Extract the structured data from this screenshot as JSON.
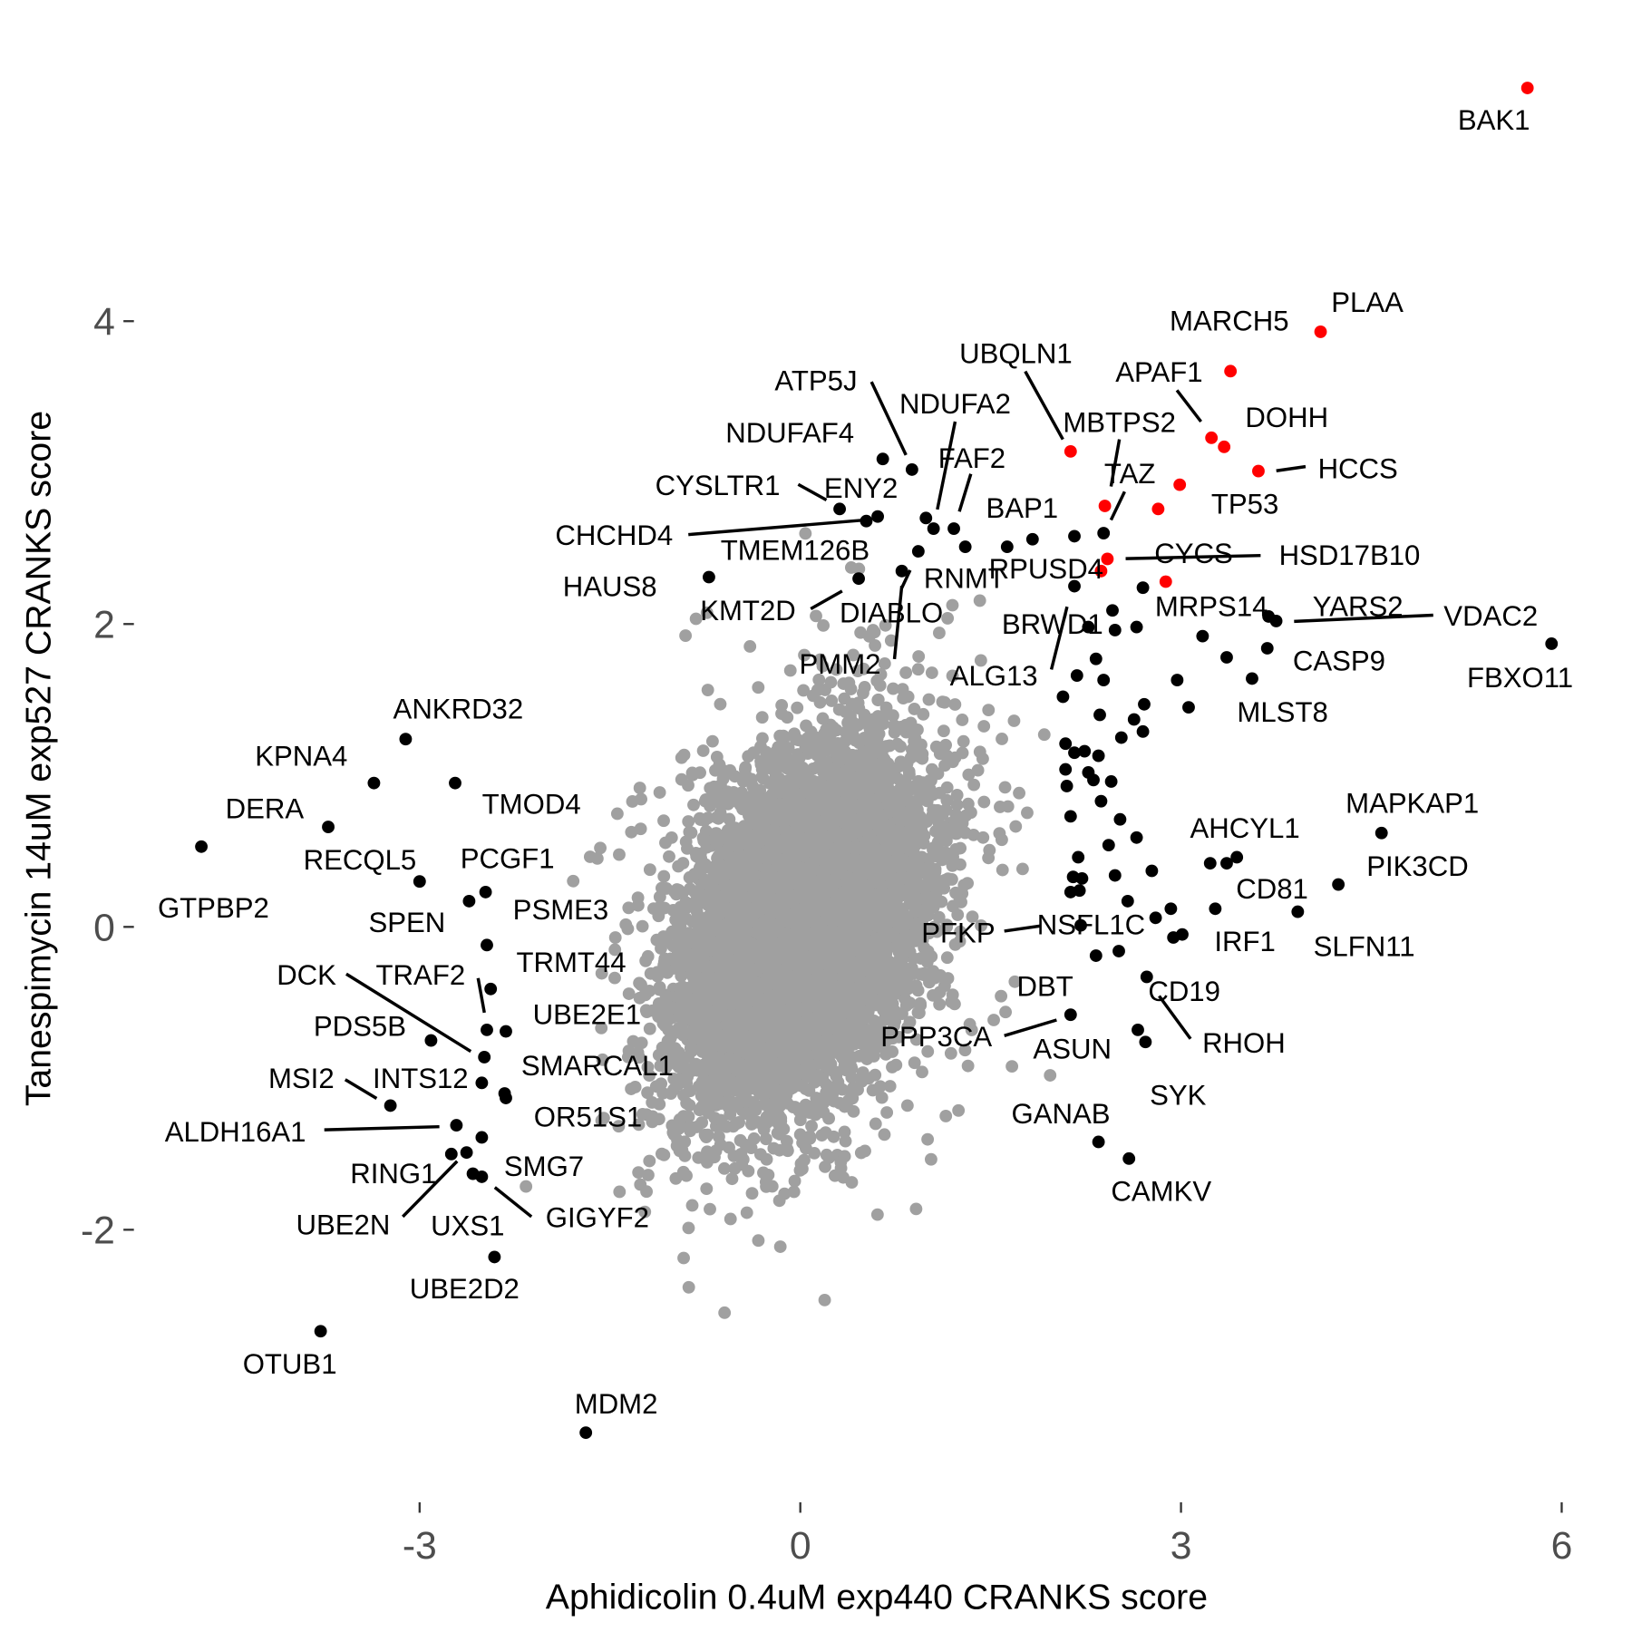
{
  "chart_data": {
    "type": "scatter",
    "xlabel": "Aphidicolin 0.4uM exp440 CRANKS score",
    "ylabel": "Tanespimycin 14uM exp527 CRANKS score",
    "xticks": [
      -3,
      0,
      3,
      6
    ],
    "yticks": [
      -2,
      0,
      2,
      4
    ],
    "grid": false,
    "legend": "none",
    "colors": {
      "background_points": "#a0a0a0",
      "highlight": "#ff0000",
      "significant": "#000000"
    },
    "red_points": [
      {
        "label": "BAK1",
        "x": 5.73,
        "y": 5.54
      },
      {
        "label": "PLAA",
        "x": 4.1,
        "y": 3.93
      },
      {
        "label": "MARCH5",
        "x": 3.39,
        "y": 3.67
      },
      {
        "label": "APAF1",
        "x": 3.24,
        "y": 3.23
      },
      {
        "label": "DOHH",
        "x": 3.34,
        "y": 3.17
      },
      {
        "label": "HCCS",
        "x": 3.61,
        "y": 3.01
      },
      {
        "label": "TP53",
        "x": 2.99,
        "y": 2.92
      },
      {
        "label": "TAZ",
        "x": 2.82,
        "y": 2.76
      },
      {
        "label": "MBTPS2",
        "x": 2.4,
        "y": 2.78
      },
      {
        "label": "UBQLN1",
        "x": 2.13,
        "y": 3.14
      },
      {
        "label": "CYCS",
        "x": 2.42,
        "y": 2.43
      },
      {
        "label": "HSD17B10",
        "x": 2.37,
        "y": 2.35
      },
      {
        "label": "MRPS14",
        "x": 2.88,
        "y": 2.28
      }
    ],
    "black_points": [
      {
        "label": "ATP5J",
        "x": 0.88,
        "y": 3.02
      },
      {
        "label": "NDUFAF4",
        "x": 0.65,
        "y": 3.09
      },
      {
        "label": "CYSLTR1",
        "x": 0.31,
        "y": 2.76
      },
      {
        "label": "ENY2",
        "x": 0.61,
        "y": 2.71
      },
      {
        "label": "CHCHD4",
        "x": 0.52,
        "y": 2.68
      },
      {
        "label": "NDUFA2",
        "x": 0.99,
        "y": 2.7
      },
      {
        "label": "FAF2",
        "x": 1.21,
        "y": 2.63
      },
      {
        "label": "TMEM126B",
        "x": 1.05,
        "y": 2.63
      },
      {
        "label": "RNMT",
        "x": 0.93,
        "y": 2.48
      },
      {
        "label": "PMM2",
        "x": 0.8,
        "y": 2.35
      },
      {
        "label": "DIABLO",
        "x": 1.3,
        "y": 2.51
      },
      {
        "label": "HAUS8",
        "x": -0.72,
        "y": 2.31
      },
      {
        "label": "KMT2D",
        "x": 0.46,
        "y": 2.3
      },
      {
        "label": "BAP1",
        "x": 1.83,
        "y": 2.56
      },
      {
        "label": "RPUSD4",
        "x": 2.16,
        "y": 2.58
      },
      {
        "label": "BRWD1",
        "x": 2.16,
        "y": 2.25
      },
      {
        "label": "ALG13",
        "x": 2.07,
        "y": 1.52
      },
      {
        "label": "YARS2",
        "x": 3.69,
        "y": 2.05
      },
      {
        "label": "VDAC2",
        "x": 3.75,
        "y": 2.02
      },
      {
        "label": "CASP9",
        "x": 3.68,
        "y": 1.84
      },
      {
        "label": "FBXO11",
        "x": 5.92,
        "y": 1.87
      },
      {
        "label": "MLST8",
        "x": 3.56,
        "y": 1.64
      },
      {
        "label": "MAPKAP1",
        "x": 4.58,
        "y": 0.62
      },
      {
        "label": "AHCYL1",
        "x": 3.44,
        "y": 0.46
      },
      {
        "label": "CD81",
        "x": 3.27,
        "y": 0.12
      },
      {
        "label": "PIK3CD",
        "x": 4.24,
        "y": 0.28
      },
      {
        "label": "SLFN11",
        "x": 3.92,
        "y": 0.1
      },
      {
        "label": "IRF1",
        "x": 3.01,
        "y": -0.05
      },
      {
        "label": "NSFL1C",
        "x": 2.8,
        "y": 0.06
      },
      {
        "label": "PFKP",
        "x": 2.21,
        "y": 0.01
      },
      {
        "label": "DBT",
        "x": 2.33,
        "y": -0.19
      },
      {
        "label": "CD19",
        "x": 2.51,
        "y": -0.16
      },
      {
        "label": "RHOH",
        "x": 2.73,
        "y": -0.33
      },
      {
        "label": "PPP3CA",
        "x": 2.13,
        "y": -0.58
      },
      {
        "label": "ASUN",
        "x": 2.66,
        "y": -0.68
      },
      {
        "label": "SYK",
        "x": 2.72,
        "y": -0.76
      },
      {
        "label": "GANAB",
        "x": 2.35,
        "y": -1.42
      },
      {
        "label": "CAMKV",
        "x": 2.59,
        "y": -1.53
      },
      {
        "label": "ANKRD32",
        "x": -3.11,
        "y": 1.24
      },
      {
        "label": "KPNA4",
        "x": -3.36,
        "y": 0.95
      },
      {
        "label": "TMOD4",
        "x": -2.72,
        "y": 0.95
      },
      {
        "label": "DERA",
        "x": -3.72,
        "y": 0.66
      },
      {
        "label": "GTPBP2",
        "x": -4.72,
        "y": 0.53
      },
      {
        "label": "RECQL5",
        "x": -3.0,
        "y": 0.3
      },
      {
        "label": "PCGF1",
        "x": -2.48,
        "y": 0.23
      },
      {
        "label": "SPEN",
        "x": -2.61,
        "y": 0.17
      },
      {
        "label": "PSME3",
        "x": -2.47,
        "y": -0.12
      },
      {
        "label": "TRMT44",
        "x": -2.44,
        "y": -0.41
      },
      {
        "label": "TRAF2",
        "x": -2.47,
        "y": -0.68
      },
      {
        "label": "UBE2E1",
        "x": -2.32,
        "y": -0.69
      },
      {
        "label": "DCK",
        "x": -2.49,
        "y": -0.86
      },
      {
        "label": "PDS5B",
        "x": -2.91,
        "y": -0.75
      },
      {
        "label": "INTS12",
        "x": -2.51,
        "y": -1.03
      },
      {
        "label": "SMARCAL1",
        "x": -2.32,
        "y": -1.13
      },
      {
        "label": "MSI2",
        "x": -3.23,
        "y": -1.18
      },
      {
        "label": "OR51S1",
        "x": -2.33,
        "y": -1.1
      },
      {
        "label": "ALDH16A1",
        "x": -2.71,
        "y": -1.31
      },
      {
        "label": "UXS1",
        "x": -2.51,
        "y": -1.39
      },
      {
        "label": "RING1",
        "x": -2.63,
        "y": -1.49
      },
      {
        "label": "UBE2N",
        "x": -2.75,
        "y": -1.5
      },
      {
        "label": "SMG7",
        "x": -2.58,
        "y": -1.63
      },
      {
        "label": "GIGYF2",
        "x": -2.51,
        "y": -1.65
      },
      {
        "label": "UBE2D2",
        "x": -2.41,
        "y": -2.18
      },
      {
        "label": "OTUB1",
        "x": -3.78,
        "y": -2.67
      },
      {
        "label": "MDM2",
        "x": -1.69,
        "y": -3.34
      }
    ],
    "black_points_unlabeled": [
      [
        2.39,
        2.6
      ],
      [
        2.7,
        2.24
      ],
      [
        2.46,
        2.09
      ],
      [
        2.65,
        1.98
      ],
      [
        2.27,
        1.98
      ],
      [
        2.48,
        1.96
      ],
      [
        3.17,
        1.92
      ],
      [
        3.36,
        1.78
      ],
      [
        2.33,
        1.77
      ],
      [
        2.97,
        1.63
      ],
      [
        2.39,
        1.63
      ],
      [
        2.18,
        1.66
      ],
      [
        3.06,
        1.45
      ],
      [
        2.71,
        1.47
      ],
      [
        2.63,
        1.37
      ],
      [
        2.36,
        1.4
      ],
      [
        2.7,
        1.29
      ],
      [
        2.53,
        1.25
      ],
      [
        2.09,
        1.21
      ],
      [
        2.16,
        1.15
      ],
      [
        2.24,
        1.16
      ],
      [
        2.35,
        1.13
      ],
      [
        2.27,
        1.02
      ],
      [
        2.09,
        1.04
      ],
      [
        2.31,
        0.97
      ],
      [
        2.45,
        0.96
      ],
      [
        2.1,
        0.93
      ],
      [
        2.37,
        0.83
      ],
      [
        2.52,
        0.71
      ],
      [
        2.13,
        0.73
      ],
      [
        2.65,
        0.59
      ],
      [
        2.43,
        0.54
      ],
      [
        2.19,
        0.46
      ],
      [
        2.48,
        0.34
      ],
      [
        2.77,
        0.37
      ],
      [
        2.15,
        0.33
      ],
      [
        2.22,
        0.32
      ],
      [
        2.2,
        0.24
      ],
      [
        2.13,
        0.23
      ],
      [
        2.58,
        0.17
      ],
      [
        2.92,
        0.12
      ],
      [
        3.23,
        0.42
      ],
      [
        3.36,
        0.42
      ],
      [
        2.94,
        -0.07
      ],
      [
        1.63,
        2.51
      ]
    ]
  }
}
